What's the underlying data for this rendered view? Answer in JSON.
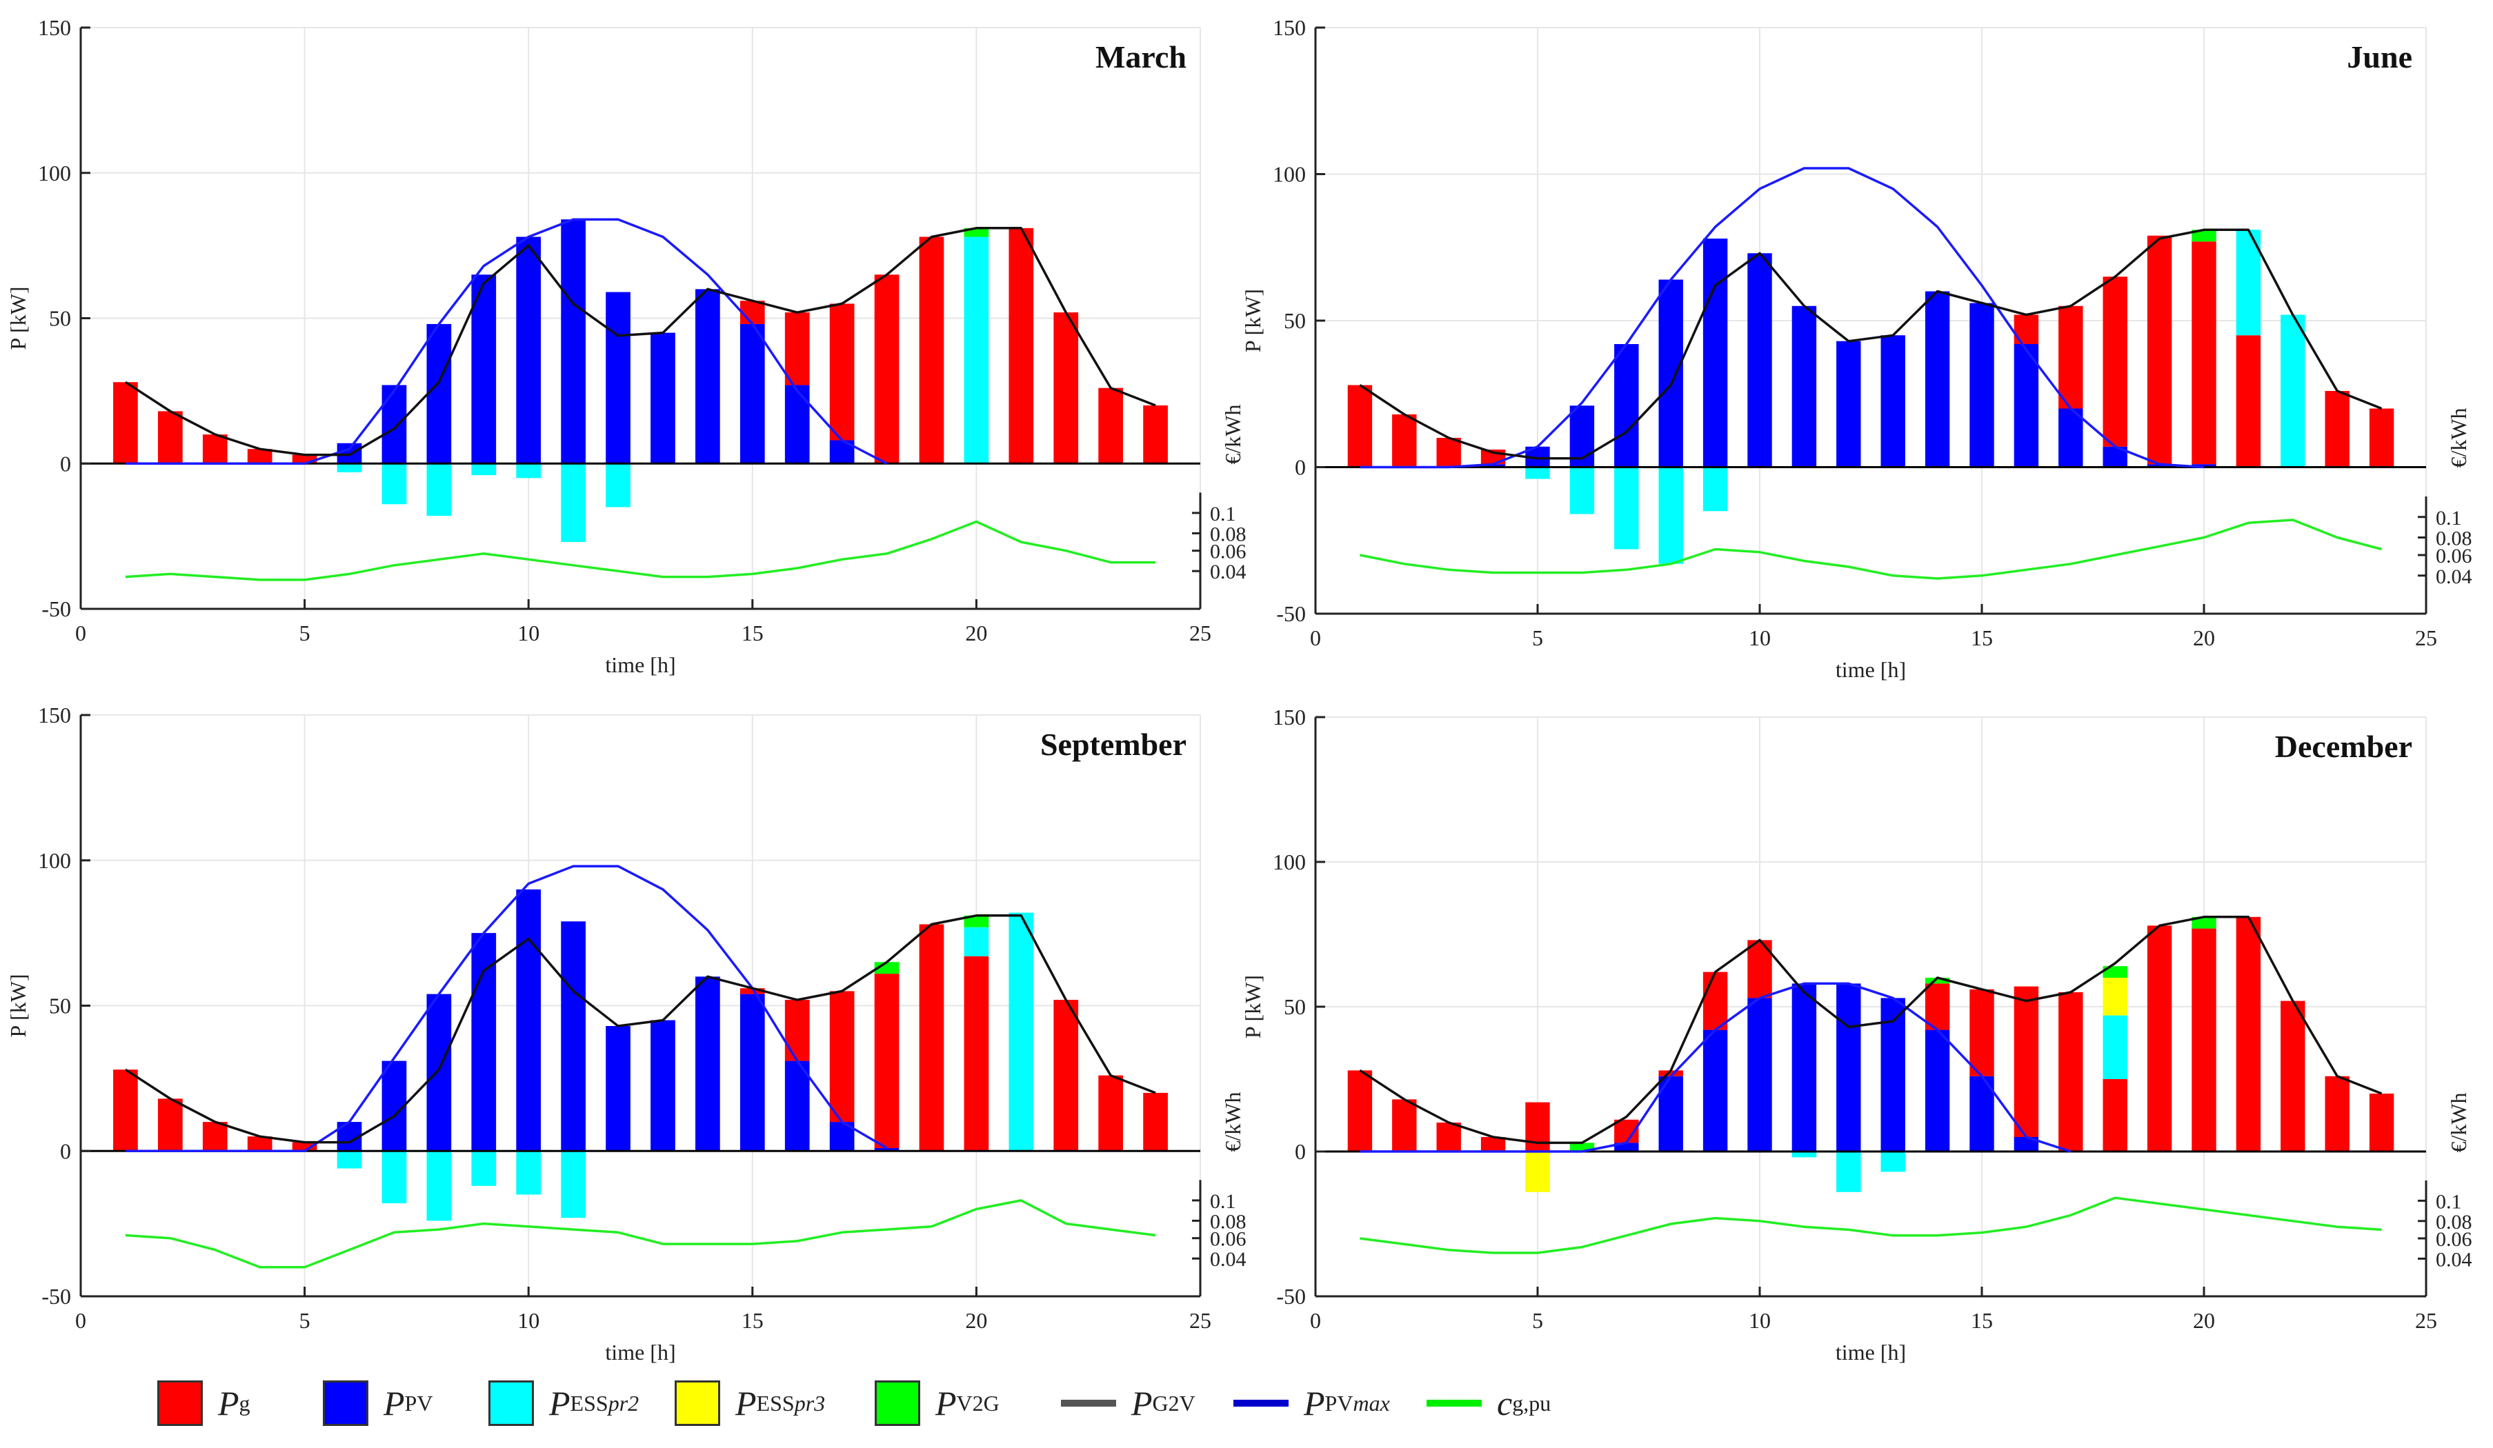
{
  "chart_data": [
    {
      "type": "bar",
      "title": "March",
      "xlabel": "time [h]",
      "ylabel": "P [kW]",
      "y2label": "€/kWh",
      "xlim": [
        0,
        25
      ],
      "ylim": [
        -50,
        150
      ],
      "xticks": [
        0,
        5,
        10,
        15,
        20,
        25
      ],
      "yticks": [
        -50,
        0,
        50,
        100,
        150
      ],
      "y2ticks": [
        "0.1",
        "0.08",
        "0.06",
        "0.04"
      ],
      "x": [
        1,
        2,
        3,
        4,
        5,
        6,
        7,
        8,
        9,
        10,
        11,
        12,
        13,
        14,
        15,
        16,
        17,
        18,
        19,
        20,
        21,
        22,
        23,
        24
      ],
      "series": [
        {
          "name": "Pg",
          "values": [
            28,
            18,
            10,
            5,
            3,
            0,
            0,
            0,
            0,
            0,
            0,
            0,
            0,
            0,
            8,
            25,
            47,
            65,
            78,
            0,
            81,
            52,
            26,
            20
          ]
        },
        {
          "name": "PPV",
          "values": [
            0,
            0,
            0,
            0,
            0,
            7,
            27,
            48,
            65,
            78,
            84,
            59,
            45,
            60,
            48,
            27,
            8,
            0,
            0,
            0,
            0,
            0,
            0,
            0
          ]
        },
        {
          "name": "PESSpr2",
          "values": [
            0,
            0,
            0,
            0,
            0,
            -3,
            -14,
            -18,
            -4,
            -5,
            -27,
            -15,
            0,
            0,
            0,
            0,
            0,
            0,
            0,
            78,
            0,
            0,
            0,
            0
          ]
        },
        {
          "name": "PESSpr3",
          "values": [
            0,
            0,
            0,
            0,
            0,
            0,
            0,
            0,
            0,
            0,
            0,
            0,
            0,
            0,
            0,
            0,
            0,
            0,
            0,
            0,
            0,
            0,
            0,
            0
          ]
        },
        {
          "name": "PV2G",
          "values": [
            0,
            0,
            0,
            0,
            0,
            0,
            0,
            0,
            0,
            0,
            0,
            0,
            0,
            0,
            0,
            0,
            0,
            0,
            0,
            3,
            0,
            0,
            0,
            0
          ]
        },
        {
          "name": "PG2V",
          "values": [
            28,
            18,
            10,
            5,
            3,
            3,
            12,
            28,
            62,
            75,
            55,
            44,
            45,
            60,
            56,
            52,
            55,
            65,
            78,
            81,
            81,
            52,
            26,
            20
          ]
        },
        {
          "name": "PPVmax",
          "values": [
            0,
            0,
            0,
            0,
            0,
            5,
            25,
            48,
            68,
            78,
            84,
            84,
            78,
            65,
            48,
            25,
            8,
            0,
            null,
            null,
            null,
            null,
            null,
            null
          ]
        },
        {
          "name": "cg,pu",
          "values": [
            -39,
            -38,
            -39,
            -40,
            -40,
            -38,
            -35,
            -33,
            -31,
            -33,
            -35,
            -37,
            -39,
            -39,
            -38,
            -36,
            -33,
            -31,
            -26,
            -20,
            -27,
            -30,
            -34,
            -34
          ]
        }
      ]
    },
    {
      "type": "bar",
      "title": "June",
      "xlabel": "time [h]",
      "ylabel": "P [kW]",
      "y2label": "€/kWh",
      "xlim": [
        0,
        25
      ],
      "ylim": [
        -50,
        150
      ],
      "xticks": [
        0,
        5,
        10,
        15,
        20,
        25
      ],
      "yticks": [
        -50,
        0,
        50,
        100,
        150
      ],
      "y2ticks": [
        "0.1",
        "0.08",
        "0.06",
        "0.04"
      ],
      "x": [
        1,
        2,
        3,
        4,
        5,
        6,
        7,
        8,
        9,
        10,
        11,
        12,
        13,
        14,
        15,
        16,
        17,
        18,
        19,
        20,
        21,
        22,
        23,
        24
      ],
      "series": [
        {
          "name": "Pg",
          "values": [
            28,
            18,
            10,
            5,
            0,
            0,
            0,
            0,
            0,
            0,
            0,
            0,
            0,
            0,
            0,
            10,
            35,
            58,
            78,
            76,
            45,
            0,
            26,
            20
          ]
        },
        {
          "name": "PPV",
          "values": [
            0,
            0,
            0,
            1,
            7,
            21,
            42,
            64,
            78,
            73,
            55,
            43,
            45,
            60,
            56,
            42,
            20,
            7,
            1,
            1,
            0,
            0,
            0,
            0
          ]
        },
        {
          "name": "PESSpr2",
          "values": [
            0,
            0,
            0,
            0,
            -4,
            -16,
            -28,
            -33,
            -15,
            0,
            0,
            0,
            0,
            0,
            0,
            0,
            0,
            0,
            0,
            0,
            36,
            52,
            0,
            0
          ]
        },
        {
          "name": "PESSpr3",
          "values": [
            0,
            0,
            0,
            0,
            0,
            0,
            0,
            0,
            0,
            0,
            0,
            0,
            0,
            0,
            0,
            0,
            0,
            0,
            0,
            0,
            0,
            0,
            0,
            0
          ]
        },
        {
          "name": "PV2G",
          "values": [
            0,
            0,
            0,
            0,
            0,
            0,
            0,
            0,
            0,
            0,
            0,
            0,
            0,
            0,
            0,
            0,
            0,
            0,
            0,
            4,
            0,
            0,
            0,
            0
          ]
        },
        {
          "name": "PG2V",
          "values": [
            28,
            18,
            10,
            5,
            3,
            3,
            12,
            28,
            62,
            73,
            55,
            43,
            45,
            60,
            56,
            52,
            55,
            65,
            78,
            81,
            81,
            52,
            26,
            20
          ]
        },
        {
          "name": "PPVmax",
          "values": [
            0,
            0,
            0,
            1,
            7,
            22,
            42,
            64,
            82,
            95,
            102,
            102,
            95,
            82,
            62,
            40,
            20,
            7,
            1,
            0,
            null,
            null,
            null,
            null
          ]
        },
        {
          "name": "cg,pu",
          "values": [
            -30,
            -33,
            -35,
            -36,
            -36,
            -36,
            -35,
            -33,
            -28,
            -29,
            -32,
            -34,
            -37,
            -38,
            -37,
            -35,
            -33,
            -30,
            -27,
            -24,
            -19,
            -18,
            -24,
            -28
          ]
        }
      ]
    },
    {
      "type": "bar",
      "title": "September",
      "xlabel": "time [h]",
      "ylabel": "P [kW]",
      "y2label": "€/kWh",
      "xlim": [
        0,
        25
      ],
      "ylim": [
        -50,
        150
      ],
      "xticks": [
        0,
        5,
        10,
        15,
        20,
        25
      ],
      "yticks": [
        -50,
        0,
        50,
        100,
        150
      ],
      "y2ticks": [
        "0.1",
        "0.08",
        "0.06",
        "0.04"
      ],
      "x": [
        1,
        2,
        3,
        4,
        5,
        6,
        7,
        8,
        9,
        10,
        11,
        12,
        13,
        14,
        15,
        16,
        17,
        18,
        19,
        20,
        21,
        22,
        23,
        24
      ],
      "series": [
        {
          "name": "Pg",
          "values": [
            28,
            18,
            10,
            5,
            3,
            0,
            0,
            0,
            0,
            0,
            0,
            0,
            0,
            0,
            2,
            21,
            45,
            60,
            78,
            67,
            0,
            52,
            26,
            20
          ]
        },
        {
          "name": "PPV",
          "values": [
            0,
            0,
            0,
            0,
            0,
            10,
            31,
            54,
            75,
            90,
            79,
            43,
            45,
            60,
            54,
            31,
            10,
            1,
            0,
            0,
            0,
            0,
            0,
            0
          ]
        },
        {
          "name": "PESSpr2",
          "values": [
            0,
            0,
            0,
            0,
            0,
            -6,
            -18,
            -24,
            -12,
            -15,
            -23,
            0,
            0,
            0,
            0,
            0,
            0,
            0,
            0,
            10,
            82,
            0,
            0,
            0
          ]
        },
        {
          "name": "PESSpr3",
          "values": [
            0,
            0,
            0,
            0,
            0,
            0,
            0,
            0,
            0,
            0,
            0,
            0,
            0,
            0,
            0,
            0,
            0,
            0,
            0,
            0,
            0,
            0,
            0,
            0
          ]
        },
        {
          "name": "PV2G",
          "values": [
            0,
            0,
            0,
            0,
            0,
            0,
            0,
            0,
            0,
            0,
            0,
            0,
            0,
            0,
            0,
            0,
            0,
            4,
            0,
            4,
            0,
            0,
            0,
            0
          ]
        },
        {
          "name": "PG2V",
          "values": [
            28,
            18,
            10,
            5,
            3,
            3,
            12,
            28,
            62,
            73,
            55,
            43,
            45,
            60,
            56,
            52,
            55,
            65,
            78,
            81,
            81,
            52,
            26,
            20
          ]
        },
        {
          "name": "PPVmax",
          "values": [
            0,
            0,
            0,
            0,
            0,
            10,
            32,
            54,
            75,
            92,
            98,
            98,
            90,
            76,
            56,
            31,
            10,
            1,
            null,
            null,
            null,
            null,
            null,
            null
          ]
        },
        {
          "name": "cg,pu",
          "values": [
            -29,
            -30,
            -34,
            -40,
            -40,
            -34,
            -28,
            -27,
            -25,
            -26,
            -27,
            -28,
            -32,
            -32,
            -32,
            -31,
            -28,
            -27,
            -26,
            -20,
            -17,
            -25,
            -27,
            -29
          ]
        }
      ]
    },
    {
      "type": "bar",
      "title": "December",
      "xlabel": "time [h]",
      "ylabel": "P [kW]",
      "y2label": "€/kWh",
      "xlim": [
        0,
        25
      ],
      "ylim": [
        -50,
        150
      ],
      "xticks": [
        0,
        5,
        10,
        15,
        20,
        25
      ],
      "yticks": [
        -50,
        0,
        50,
        100,
        150
      ],
      "y2ticks": [
        "0.1",
        "0.08",
        "0.06",
        "0.04"
      ],
      "x": [
        1,
        2,
        3,
        4,
        5,
        6,
        7,
        8,
        9,
        10,
        11,
        12,
        13,
        14,
        15,
        16,
        17,
        18,
        19,
        20,
        21,
        22,
        23,
        24
      ],
      "series": [
        {
          "name": "Pg",
          "values": [
            28,
            18,
            10,
            5,
            17,
            0,
            8,
            2,
            20,
            20,
            0,
            0,
            0,
            16,
            30,
            52,
            55,
            25,
            78,
            77,
            81,
            52,
            26,
            20
          ]
        },
        {
          "name": "PPV",
          "values": [
            0,
            0,
            0,
            0,
            0,
            0,
            3,
            26,
            42,
            53,
            58,
            58,
            53,
            42,
            26,
            5,
            0,
            0,
            0,
            0,
            0,
            0,
            0,
            0
          ]
        },
        {
          "name": "PESSpr2",
          "values": [
            0,
            0,
            0,
            0,
            0,
            0,
            0,
            0,
            0,
            0,
            -2,
            -14,
            -7,
            0,
            0,
            0,
            0,
            22,
            0,
            0,
            0,
            0,
            0,
            0
          ]
        },
        {
          "name": "PESSpr3",
          "values": [
            0,
            0,
            0,
            0,
            -14,
            0,
            0,
            0,
            0,
            0,
            0,
            0,
            0,
            0,
            0,
            0,
            0,
            13,
            0,
            0,
            0,
            0,
            0,
            0
          ]
        },
        {
          "name": "PV2G",
          "values": [
            0,
            0,
            0,
            0,
            0,
            3,
            0,
            0,
            0,
            0,
            0,
            0,
            0,
            2,
            0,
            0,
            0,
            4,
            0,
            4,
            0,
            0,
            0,
            0
          ]
        },
        {
          "name": "PG2V",
          "values": [
            28,
            18,
            10,
            5,
            3,
            3,
            12,
            28,
            62,
            73,
            55,
            43,
            45,
            60,
            56,
            52,
            55,
            65,
            78,
            81,
            81,
            52,
            26,
            20
          ]
        },
        {
          "name": "PPVmax",
          "values": [
            0,
            0,
            0,
            0,
            0,
            0,
            3,
            26,
            42,
            53,
            58,
            58,
            53,
            42,
            26,
            5,
            0,
            null,
            null,
            null,
            null,
            null,
            null,
            null
          ]
        },
        {
          "name": "cg,pu",
          "values": [
            -30,
            -32,
            -34,
            -35,
            -35,
            -33,
            -29,
            -25,
            -23,
            -24,
            -26,
            -27,
            -29,
            -29,
            -28,
            -26,
            -22,
            -16,
            -18,
            -20,
            -22,
            -24,
            -26,
            -27
          ]
        }
      ]
    }
  ],
  "legend": {
    "items": [
      {
        "key": "Pg",
        "main": "P",
        "sub": "g",
        "sup": "",
        "kind": "swatch",
        "color": "#ff0000"
      },
      {
        "key": "PPV",
        "main": "P",
        "sub": "PV",
        "sup": "",
        "kind": "swatch",
        "color": "#0000ff"
      },
      {
        "key": "PESSpr2",
        "main": "P",
        "sub": "ESS",
        "sup": "pr2",
        "kind": "swatch",
        "color": "#00ffff"
      },
      {
        "key": "PESSpr3",
        "main": "P",
        "sub": "ESS",
        "sup": "pr3",
        "kind": "swatch",
        "color": "#ffff00"
      },
      {
        "key": "PV2G",
        "main": "P",
        "sub": "V2G",
        "sup": "",
        "kind": "swatch",
        "color": "#00ff00"
      },
      {
        "key": "PG2V",
        "main": "P",
        "sub": "G2V",
        "sup": "",
        "kind": "line",
        "color": "#000000"
      },
      {
        "key": "PPVmax",
        "main": "P",
        "sub": "PV",
        "sup": "max",
        "kind": "line",
        "color": "#0000ff"
      },
      {
        "key": "cg,pu",
        "main": "c",
        "sub": "g,pu",
        "sup": "",
        "kind": "line",
        "color": "#00ff00"
      }
    ]
  }
}
